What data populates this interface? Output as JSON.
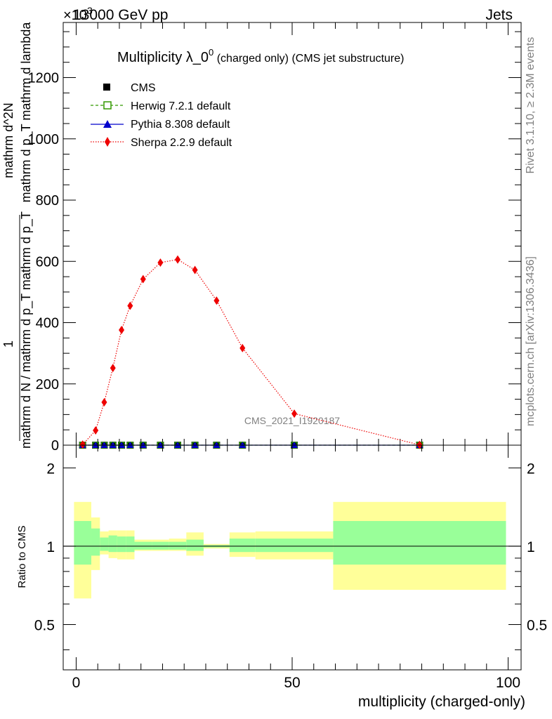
{
  "header": {
    "energy": "13000 GeV pp",
    "category": "Jets",
    "exponent_base": "×10",
    "exponent": "3"
  },
  "side_labels": {
    "rivet": "Rivet 3.1.10, ≥ 2.3M events",
    "mcplots": "mcplots.cern.ch [arXiv:1306.3436]"
  },
  "watermark": "CMS_2021_I1920187",
  "title": {
    "main": "Multiplicity λ_0",
    "sup": "0",
    "suffix": " (charged only) (CMS jet substructure)"
  },
  "y_label_main": {
    "numerator": "1",
    "denominator": "mathrm d N / mathrm d p_T mathrm d p_T",
    "line2": "mathrm d^2N",
    "line3": "mathrm d p_T mathrm d lambda"
  },
  "legend": [
    {
      "label": "CMS",
      "color": "#000000",
      "marker": "square"
    },
    {
      "label": "Herwig 7.2.1 default",
      "color": "#339900",
      "marker": "open-square"
    },
    {
      "label": "Pythia 8.308 default",
      "color": "#0000cc",
      "marker": "triangle"
    },
    {
      "label": "Sherpa 2.2.9 default",
      "color": "#ee0000",
      "marker": "diamond"
    }
  ],
  "chart_data": [
    {
      "type": "line",
      "panel": "main",
      "xlim": [
        -3,
        103
      ],
      "ylim": [
        0,
        1380
      ],
      "y_multiplier": "×10^3",
      "y_ticks": [
        0,
        200,
        400,
        600,
        800,
        1000,
        1200
      ],
      "y_tick_labels": [
        "0",
        "200",
        "400",
        "600",
        "800",
        "1000",
        "1200"
      ],
      "series": [
        {
          "name": "Sherpa 2.2.9 default",
          "color": "#ee0000",
          "x": [
            1.5,
            4.5,
            6.5,
            8.5,
            10.5,
            12.5,
            15.5,
            19.5,
            23.5,
            27.5,
            32.5,
            38.5,
            50.5,
            79.5
          ],
          "y": [
            2,
            48,
            140,
            252,
            376,
            455,
            542,
            596,
            606,
            572,
            472,
            317,
            103,
            1
          ]
        },
        {
          "name": "CMS",
          "color": "#000000",
          "x": [
            1.5,
            4.5,
            6.5,
            8.5,
            10.5,
            12.5,
            15.5,
            19.5,
            23.5,
            27.5,
            32.5,
            38.5,
            50.5,
            79.5
          ],
          "y": [
            0,
            0,
            0,
            0,
            0,
            0,
            0,
            0,
            0,
            0,
            0,
            0,
            0,
            0
          ]
        },
        {
          "name": "Herwig 7.2.1 default",
          "color": "#339900",
          "x": [
            1.5,
            4.5,
            6.5,
            8.5,
            10.5,
            12.5,
            15.5,
            19.5,
            23.5,
            27.5,
            32.5,
            38.5,
            50.5,
            79.5
          ],
          "y": [
            0,
            0,
            0,
            0,
            0,
            0,
            0,
            0,
            0,
            0,
            0,
            0,
            0,
            0
          ]
        },
        {
          "name": "Pythia 8.308 default",
          "color": "#0000cc",
          "x": [
            1.5,
            4.5,
            6.5,
            8.5,
            10.5,
            12.5,
            15.5,
            19.5,
            23.5,
            27.5,
            32.5,
            38.5,
            50.5,
            79.5
          ],
          "y": [
            0,
            0,
            0,
            0,
            0,
            0,
            0,
            0,
            0,
            0,
            0,
            0,
            0,
            0
          ]
        }
      ]
    },
    {
      "type": "area",
      "panel": "ratio",
      "xlabel": "multiplicity (charged-only)",
      "ylabel": "Ratio to CMS",
      "xlim": [
        -3,
        103
      ],
      "ylim": [
        0.335,
        2.445
      ],
      "x_ticks": [
        0,
        50,
        100
      ],
      "x_tick_labels": [
        "0",
        "50",
        "100"
      ],
      "y_ticks": [
        0.5,
        1,
        2
      ],
      "y_tick_labels": [
        "0.5",
        "1",
        "2"
      ],
      "bins": [
        {
          "x0": -0.5,
          "x1": 3.5,
          "inner": [
            0.85,
            1.25
          ],
          "outer": [
            0.63,
            1.48
          ]
        },
        {
          "x0": 3.5,
          "x1": 5.5,
          "inner": [
            0.92,
            1.17
          ],
          "outer": [
            0.81,
            1.29
          ]
        },
        {
          "x0": 5.5,
          "x1": 7.5,
          "inner": [
            0.96,
            1.08
          ],
          "outer": [
            0.93,
            1.14
          ]
        },
        {
          "x0": 7.5,
          "x1": 9.5,
          "inner": [
            0.95,
            1.1
          ],
          "outer": [
            0.9,
            1.15
          ]
        },
        {
          "x0": 9.5,
          "x1": 11.5,
          "inner": [
            0.95,
            1.09
          ],
          "outer": [
            0.89,
            1.15
          ]
        },
        {
          "x0": 11.5,
          "x1": 13.5,
          "inner": [
            0.95,
            1.09
          ],
          "outer": [
            0.89,
            1.15
          ]
        },
        {
          "x0": 13.5,
          "x1": 17.5,
          "inner": [
            0.97,
            1.04
          ],
          "outer": [
            0.96,
            1.06
          ]
        },
        {
          "x0": 17.5,
          "x1": 21.5,
          "inner": [
            0.97,
            1.04
          ],
          "outer": [
            0.96,
            1.06
          ]
        },
        {
          "x0": 21.5,
          "x1": 25.5,
          "inner": [
            0.97,
            1.04
          ],
          "outer": [
            0.96,
            1.07
          ]
        },
        {
          "x0": 25.5,
          "x1": 29.5,
          "inner": [
            0.96,
            1.06
          ],
          "outer": [
            0.92,
            1.13
          ]
        },
        {
          "x0": 29.5,
          "x1": 35.5,
          "inner": [
            0.99,
            1.01
          ],
          "outer": [
            0.98,
            1.02
          ]
        },
        {
          "x0": 35.5,
          "x1": 41.5,
          "inner": [
            0.95,
            1.07
          ],
          "outer": [
            0.91,
            1.13
          ]
        },
        {
          "x0": 41.5,
          "x1": 59.5,
          "inner": [
            0.95,
            1.07
          ],
          "outer": [
            0.89,
            1.14
          ]
        },
        {
          "x0": 59.5,
          "x1": 99.5,
          "inner": [
            0.85,
            1.25
          ],
          "outer": [
            0.68,
            1.48
          ]
        }
      ],
      "reference_line": 1
    }
  ]
}
